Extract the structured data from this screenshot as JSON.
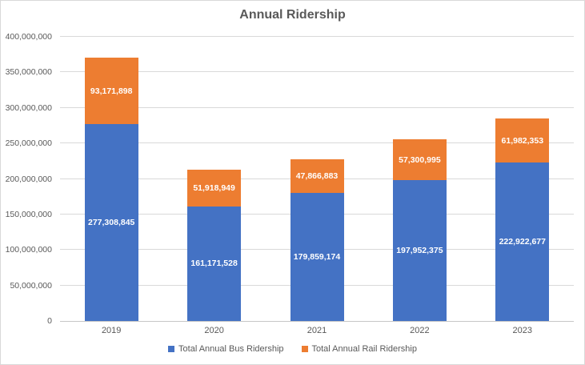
{
  "chart_data": {
    "type": "bar",
    "stacked": true,
    "title": "Annual Ridership",
    "categories": [
      "2019",
      "2020",
      "2021",
      "2022",
      "2023"
    ],
    "series": [
      {
        "name": "Total Annual Bus Ridership",
        "color": "#4472C4",
        "values": [
          277308845,
          161171528,
          179859174,
          197952375,
          222922677
        ]
      },
      {
        "name": "Total Annual Rail Ridership",
        "color": "#ED7D31",
        "values": [
          93171898,
          51918949,
          47866883,
          57300995,
          61982353
        ]
      }
    ],
    "ylim": [
      0,
      400000000
    ],
    "ytick_step": 50000000,
    "ytick_labels": [
      "0",
      "50,000,000",
      "100,000,000",
      "150,000,000",
      "200,000,000",
      "250,000,000",
      "300,000,000",
      "350,000,000",
      "400,000,000"
    ],
    "grid": "horizontal",
    "legend_position": "bottom",
    "data_labels": "center-of-segment, comma-formatted, white bold"
  },
  "style": {
    "title_color": "#595959",
    "axis_text_color": "#595959",
    "gridline_color": "#D9D9D9",
    "axis_line_color": "#C6C6C6",
    "chart_border_color": "#D9D9D9",
    "background_color": "#FFFFFF"
  }
}
